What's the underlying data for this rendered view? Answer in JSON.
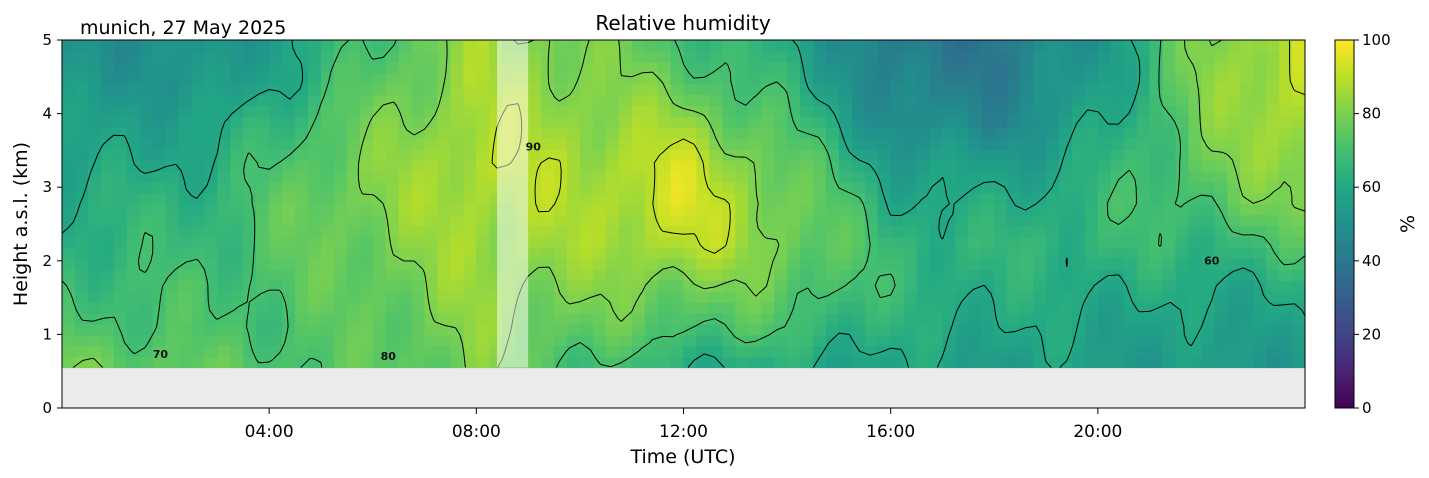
{
  "chart_data": {
    "type": "heatmap",
    "site_date": "munich, 27 May 2025",
    "title": "Relative humidity",
    "xlabel": "Time (UTC)",
    "ylabel": "Height a.s.l. (km)",
    "xlim_hours": [
      0,
      24
    ],
    "ylim_km": [
      0,
      5
    ],
    "x_ticks": [
      {
        "hour": 4,
        "label": "04:00"
      },
      {
        "hour": 8,
        "label": "08:00"
      },
      {
        "hour": 12,
        "label": "12:00"
      },
      {
        "hour": 16,
        "label": "16:00"
      },
      {
        "hour": 20,
        "label": "20:00"
      }
    ],
    "y_ticks": [
      "0",
      "1",
      "2",
      "3",
      "4",
      "5"
    ],
    "colorbar": {
      "label": "%",
      "range": [
        0,
        100
      ],
      "ticks": [
        "0",
        "20",
        "40",
        "60",
        "80",
        "100"
      ],
      "colormap": "viridis"
    },
    "data_floor_km": 0.55,
    "masked_period_hours": [
      8.4,
      9.0
    ],
    "contour_levels": [
      60,
      70,
      80,
      90
    ],
    "contour_labels": [
      {
        "text": "70",
        "hour": 1.9,
        "km": 0.68
      },
      {
        "text": "80",
        "hour": 6.3,
        "km": 0.65
      },
      {
        "text": "90",
        "hour": 9.1,
        "km": 3.5
      },
      {
        "text": "60",
        "hour": 22.2,
        "km": 1.95
      }
    ],
    "humidity_field_samples": [
      {
        "hour": 0.5,
        "km": [
          78,
          72,
          68,
          64,
          62,
          58,
          55,
          52,
          50
        ]
      },
      {
        "hour": 3.0,
        "km": [
          74,
          70,
          70,
          68,
          66,
          62,
          58,
          52,
          50
        ]
      },
      {
        "hour": 5.0,
        "km": [
          72,
          72,
          74,
          76,
          78,
          76,
          72,
          66,
          62
        ]
      },
      {
        "hour": 7.0,
        "km": [
          76,
          78,
          80,
          82,
          84,
          84,
          82,
          80,
          78
        ]
      },
      {
        "hour": 8.0,
        "km": [
          80,
          82,
          84,
          86,
          88,
          90,
          88,
          86,
          84
        ]
      },
      {
        "hour": 10.0,
        "km": [
          70,
          76,
          80,
          84,
          86,
          86,
          84,
          82,
          80
        ]
      },
      {
        "hour": 12.0,
        "km": [
          62,
          72,
          80,
          90,
          94,
          92,
          84,
          76,
          70
        ]
      },
      {
        "hour": 14.0,
        "km": [
          60,
          70,
          76,
          80,
          80,
          76,
          70,
          64,
          60
        ]
      },
      {
        "hour": 16.0,
        "km": [
          58,
          62,
          66,
          66,
          62,
          56,
          48,
          44,
          40
        ]
      },
      {
        "hour": 18.0,
        "km": [
          56,
          60,
          62,
          64,
          60,
          54,
          46,
          42,
          40
        ]
      },
      {
        "hour": 20.0,
        "km": [
          56,
          58,
          62,
          66,
          66,
          62,
          58,
          54,
          52
        ]
      },
      {
        "hour": 22.0,
        "km": [
          54,
          56,
          60,
          66,
          72,
          76,
          78,
          80,
          80
        ]
      },
      {
        "hour": 24.0,
        "km": [
          54,
          58,
          62,
          70,
          80,
          86,
          90,
          92,
          92
        ]
      }
    ]
  }
}
